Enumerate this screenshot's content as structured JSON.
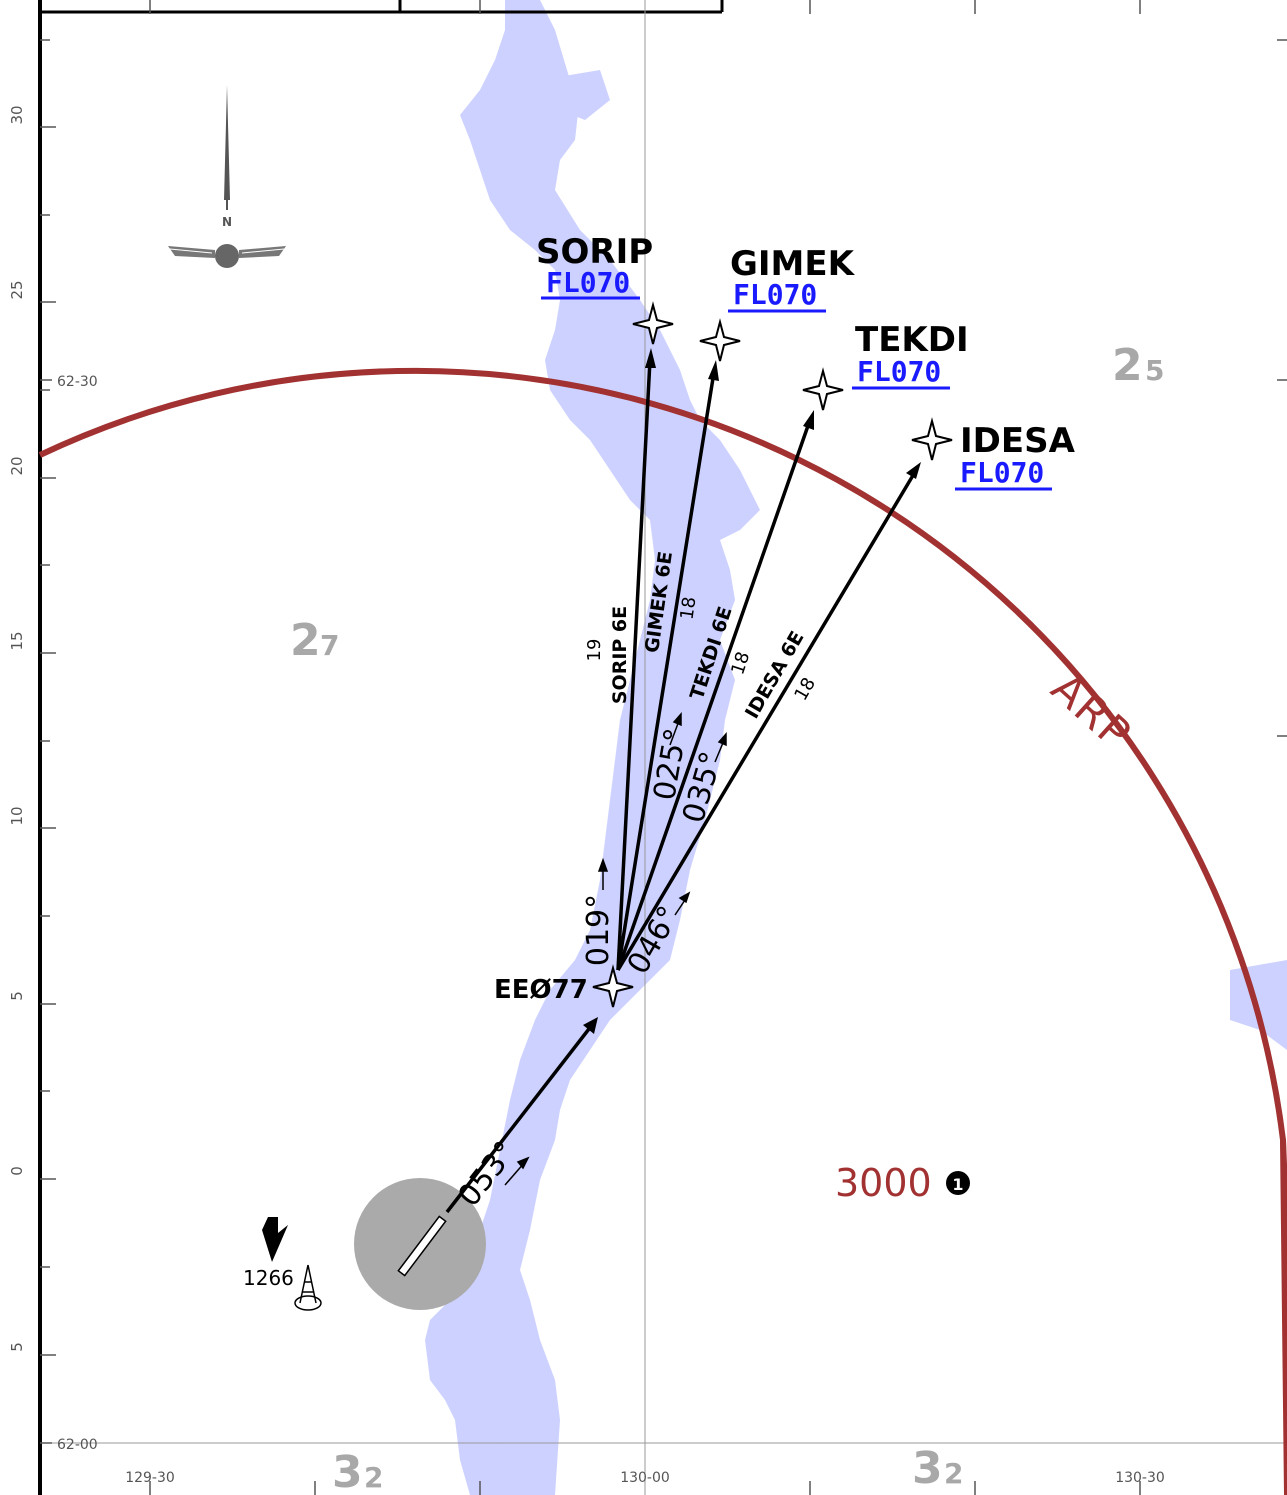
{
  "waypoints": {
    "sorip": {
      "name": "SORIP",
      "alt": "FL070"
    },
    "gimek": {
      "name": "GIMEK",
      "alt": "FL070"
    },
    "tekdi": {
      "name": "TEKDI",
      "alt": "FL070"
    },
    "idesa": {
      "name": "IDESA",
      "alt": "FL070"
    },
    "ee077": {
      "name": "EEØ77"
    }
  },
  "routes": {
    "sorip": {
      "name": "SORIP 6E",
      "dist": "19"
    },
    "gimek": {
      "name": "GIMEK 6E",
      "dist": "18"
    },
    "tekdi": {
      "name": "TEKDI 6E",
      "dist": "18"
    },
    "idesa": {
      "name": "IDESA 6E",
      "dist": "18"
    }
  },
  "courses": {
    "c053": "053°",
    "c019": "019°",
    "c046": "046°",
    "c025": "025°",
    "c035": "035°"
  },
  "sectors": {
    "nw": {
      "big": "2",
      "small": "7"
    },
    "ne": {
      "big": "2",
      "small": "5"
    },
    "sw": {
      "big": "3",
      "small": "2"
    },
    "se": {
      "big": "3",
      "small": "2"
    }
  },
  "arp_label": "ARP",
  "msa_altitude": "3000",
  "note_marker": "1",
  "obstacle_elevation": "1266",
  "north_label": "N",
  "lat_labels": {
    "top": "62-30",
    "bottom": "62-00"
  },
  "lon_labels": {
    "left": "129-30",
    "center": "130-00",
    "right": "130-30"
  },
  "minute_ticks": [
    "30",
    "25",
    "20",
    "15",
    "10",
    "5",
    "0",
    "5"
  ],
  "colors": {
    "water": "#cdd1ff",
    "arp_circle": "#a23232",
    "fl_text": "#1a1aff",
    "airport": "#aaaaaa"
  }
}
